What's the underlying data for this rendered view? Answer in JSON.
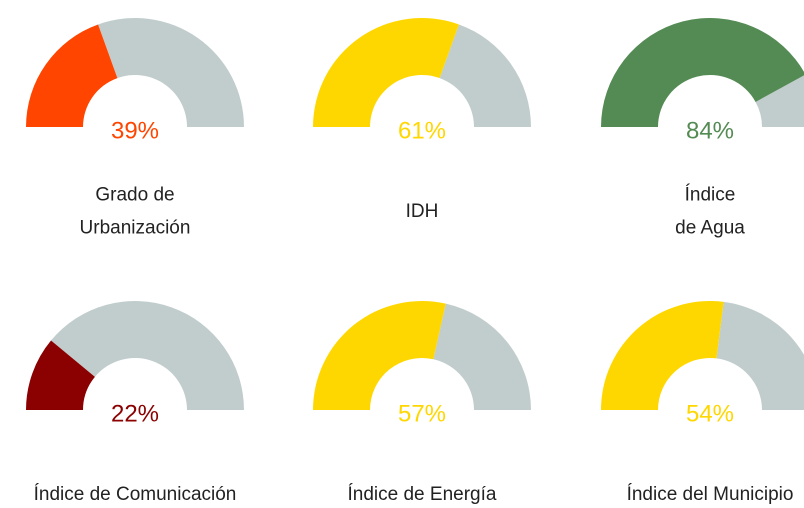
{
  "chart_data": [
    {
      "type": "gauge",
      "title": [
        "Grado de",
        "Urbanización"
      ],
      "values": [
        39
      ],
      "value_labels": [
        "39%"
      ],
      "color": "#ff4500",
      "track_color": "#c1cdcd",
      "ylim": [
        0,
        100
      ]
    },
    {
      "type": "gauge",
      "title": [
        "IDH"
      ],
      "values": [
        61
      ],
      "value_labels": [
        "61%"
      ],
      "color": "#ffd700",
      "track_color": "#c1cdcd",
      "ylim": [
        0,
        100
      ]
    },
    {
      "type": "gauge",
      "title": [
        "Índice",
        "de Agua"
      ],
      "values": [
        84
      ],
      "value_labels": [
        "84%"
      ],
      "color": "#548b54",
      "track_color": "#c1cdcd",
      "ylim": [
        0,
        100
      ]
    },
    {
      "type": "gauge",
      "title": [
        "Índice de Comunicación"
      ],
      "values": [
        22
      ],
      "value_labels": [
        "22%"
      ],
      "color": "#8b0000",
      "track_color": "#c1cdcd",
      "ylim": [
        0,
        100
      ]
    },
    {
      "type": "gauge",
      "title": [
        "Índice de Energía"
      ],
      "values": [
        57
      ],
      "value_labels": [
        "57%"
      ],
      "color": "#ffd700",
      "track_color": "#c1cdcd",
      "ylim": [
        0,
        100
      ]
    },
    {
      "type": "gauge",
      "title": [
        "Índice del Municipio"
      ],
      "values": [
        54
      ],
      "value_labels": [
        "54%"
      ],
      "color": "#ffd700",
      "track_color": "#c1cdcd",
      "ylim": [
        0,
        100
      ]
    }
  ]
}
